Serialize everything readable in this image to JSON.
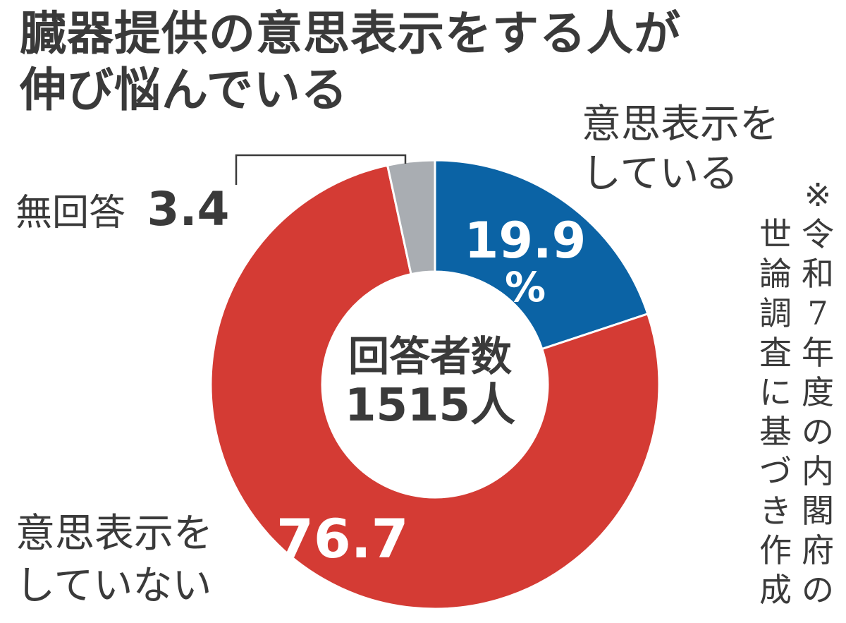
{
  "title_lines": [
    "臓器提供の意思表示をする人が",
    "伸び悩んでいる"
  ],
  "center": {
    "line1": "回答者数",
    "line2": "1515人"
  },
  "labels": {
    "yes_line1": "意思表示を",
    "yes_line2": "している",
    "yes_value": "19.9",
    "yes_unit": "%",
    "no_line1": "意思表示を",
    "no_line2": "していない",
    "no_value": "76.7",
    "na_name": "無回答",
    "na_value": "3.4"
  },
  "note": [
    "※令和7年度の内閣府の",
    "世論調査に基づき作成"
  ],
  "colors": {
    "yes": "#0b63a5",
    "no": "#d43b34",
    "na": "#a9adb2",
    "text": "#3a3a3a"
  },
  "chart_data": {
    "type": "pie",
    "donut": true,
    "unit": "%",
    "slices": [
      {
        "name": "意思表示をしている",
        "value": 19.9
      },
      {
        "name": "意思表示をしていない",
        "value": 76.7
      },
      {
        "name": "無回答",
        "value": 3.4
      }
    ]
  }
}
